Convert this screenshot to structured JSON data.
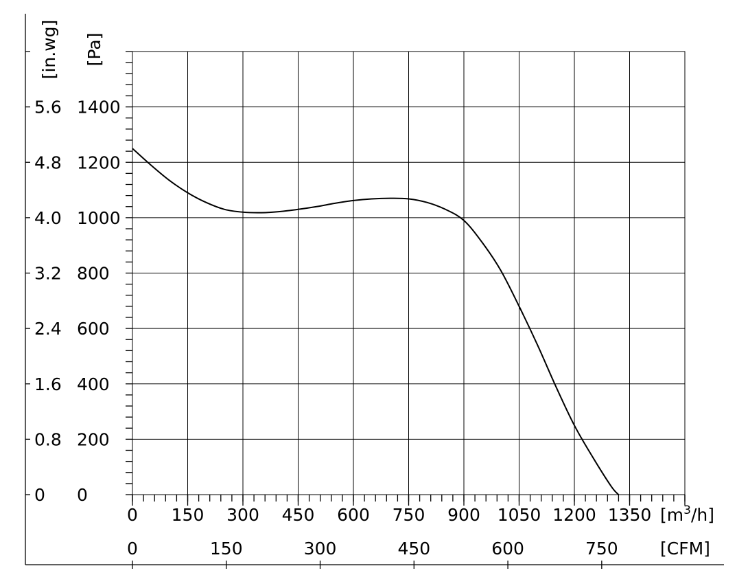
{
  "chart_data": {
    "type": "line",
    "title": "",
    "x_primary": {
      "label_pre": "[m",
      "label_sup": "3",
      "label_post": "/h]",
      "ticks": [
        0,
        150,
        300,
        450,
        600,
        750,
        900,
        1050,
        1200,
        1350
      ],
      "range": [
        0,
        1500
      ]
    },
    "x_secondary": {
      "label": "[CFM]",
      "ticks": [
        0,
        150,
        300,
        450,
        600,
        750
      ]
    },
    "y_primary": {
      "label": "[Pa]",
      "ticks": [
        0,
        200,
        400,
        600,
        800,
        1000,
        1200,
        1400
      ],
      "range": [
        0,
        1600
      ]
    },
    "y_secondary": {
      "label": "[in.wg]",
      "ticks": [
        "0",
        "0.8",
        "1.6",
        "2.4",
        "3.2",
        "4.0",
        "4.8",
        "5.6"
      ]
    },
    "grid": true,
    "series": [
      {
        "x": [
          0,
          50,
          100,
          150,
          200,
          250,
          300,
          350,
          400,
          450,
          500,
          550,
          600,
          650,
          700,
          750,
          800,
          850,
          900,
          950,
          1000,
          1050,
          1100,
          1150,
          1200,
          1250,
          1300,
          1320
        ],
        "values": [
          1250,
          1190,
          1135,
          1090,
          1055,
          1030,
          1020,
          1018,
          1022,
          1030,
          1040,
          1052,
          1062,
          1068,
          1070,
          1068,
          1055,
          1030,
          990,
          910,
          810,
          680,
          540,
          390,
          250,
          135,
          30,
          0
        ]
      }
    ]
  }
}
